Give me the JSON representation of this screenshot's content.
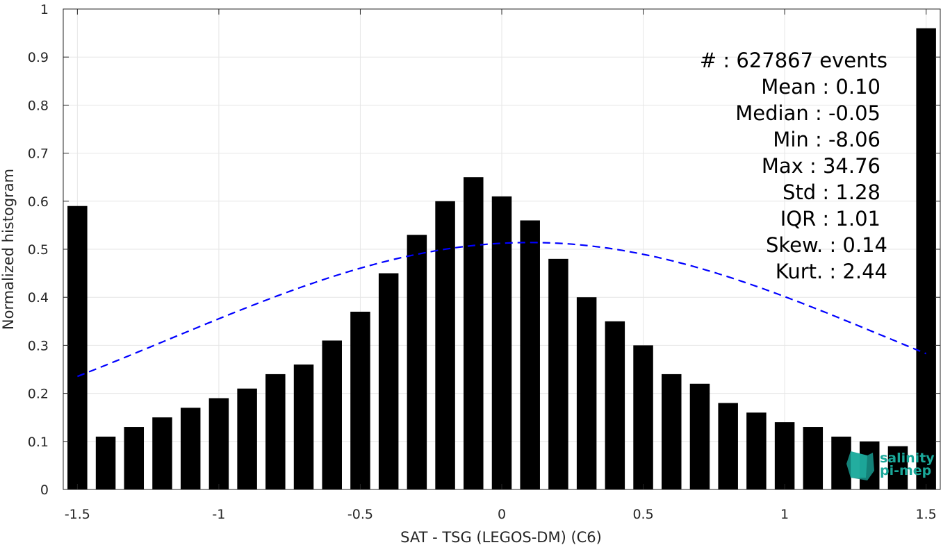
{
  "chart_data": {
    "type": "bar",
    "xlabel": "SAT - TSG (LEGOS-DM) (C6)",
    "ylabel": "Normalized histogram",
    "xlim": [
      -1.55,
      1.55
    ],
    "ylim": [
      0,
      1
    ],
    "grid": true,
    "x_ticks": [
      -1.5,
      -1,
      -0.5,
      0,
      0.5,
      1,
      1.5
    ],
    "x_tick_labels": [
      "-1.5",
      "-1",
      "-0.5",
      "0",
      "0.5",
      "1",
      "1.5"
    ],
    "y_ticks": [
      0,
      0.1,
      0.2,
      0.3,
      0.4,
      0.5,
      0.6,
      0.7,
      0.8,
      0.9,
      1
    ],
    "y_tick_labels": [
      "0",
      "0.1",
      "0.2",
      "0.3",
      "0.4",
      "0.5",
      "0.6",
      "0.7",
      "0.8",
      "0.9",
      "1"
    ],
    "bar_color": "#000000",
    "bar_width": 0.07,
    "x": [
      -1.5,
      -1.4,
      -1.3,
      -1.2,
      -1.1,
      -1.0,
      -0.9,
      -0.8,
      -0.7,
      -0.6,
      -0.5,
      -0.4,
      -0.3,
      -0.2,
      -0.1,
      0.0,
      0.1,
      0.2,
      0.3,
      0.4,
      0.5,
      0.6,
      0.7,
      0.8,
      0.9,
      1.0,
      1.1,
      1.2,
      1.3,
      1.4,
      1.5
    ],
    "values": [
      0.59,
      0.11,
      0.13,
      0.15,
      0.17,
      0.19,
      0.21,
      0.24,
      0.26,
      0.31,
      0.37,
      0.45,
      0.53,
      0.6,
      0.65,
      0.61,
      0.56,
      0.48,
      0.4,
      0.35,
      0.3,
      0.24,
      0.22,
      0.18,
      0.16,
      0.14,
      0.13,
      0.11,
      0.1,
      0.09,
      0.96
    ],
    "fit_curve": {
      "style": "dashed",
      "color": "#0000ff",
      "mean": 0.1,
      "std": 1.28,
      "x_range": [
        -1.5,
        1.5
      ],
      "peak": 0.514
    },
    "annotations": [
      "#  : 627867 events",
      "Mean : 0.10",
      "Median : -0.05",
      "Min : -8.06",
      "Max : 34.76",
      "Std : 1.28",
      "IQR : 1.01",
      "Skew. : 0.14",
      "Kurt. : 2.44"
    ]
  },
  "logo": {
    "line1": "salinity",
    "line2": "pi-mep",
    "color": "#1aa89a"
  }
}
